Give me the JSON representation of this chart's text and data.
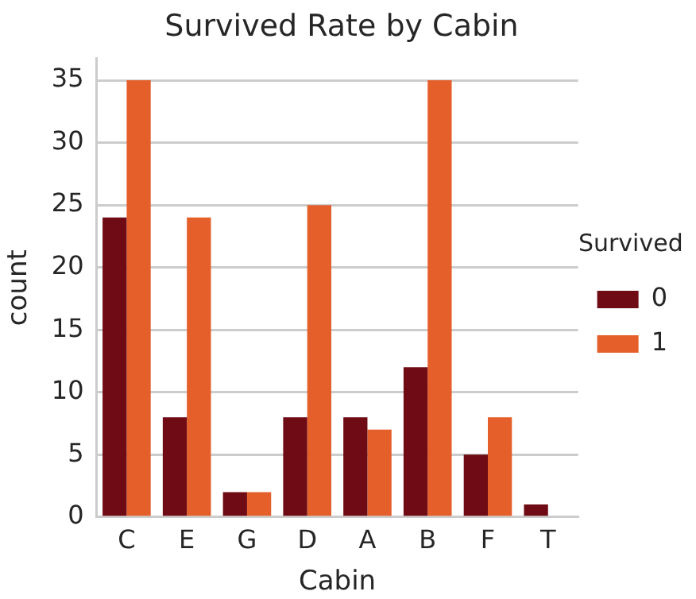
{
  "chart_data": {
    "type": "bar",
    "title": "Survived Rate by Cabin",
    "xlabel": "Cabin",
    "ylabel": "count",
    "legend_title": "Survived",
    "categories": [
      "C",
      "E",
      "G",
      "D",
      "A",
      "B",
      "F",
      "T"
    ],
    "series": [
      {
        "name": "0",
        "color": "#6e0b14",
        "values": [
          24,
          8,
          2,
          8,
          8,
          12,
          5,
          1
        ]
      },
      {
        "name": "1",
        "color": "#e55f2b",
        "values": [
          35,
          24,
          2,
          25,
          7,
          35,
          8,
          0
        ]
      }
    ],
    "ylim": [
      0,
      36.75
    ],
    "yticks": [
      0,
      5,
      10,
      15,
      20,
      25,
      30,
      35
    ],
    "grid": "y",
    "legend": "right"
  }
}
